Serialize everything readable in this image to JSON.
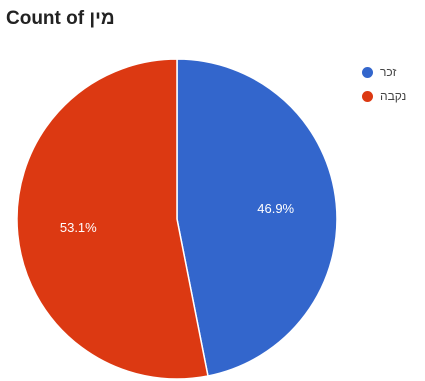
{
  "chart_data": {
    "type": "pie",
    "title_prefix": "Count of",
    "title_field": "מין",
    "series": [
      {
        "name": "",
        "values": [
          46.9,
          53.1
        ]
      }
    ],
    "categories": [
      "זכר",
      "נקבה"
    ],
    "value_labels": [
      "46.9%",
      "53.1%"
    ],
    "colors": [
      "#3366cc",
      "#dc3912"
    ],
    "legend_position": "right",
    "start_angle_deg": 0,
    "direction": "clockwise"
  }
}
